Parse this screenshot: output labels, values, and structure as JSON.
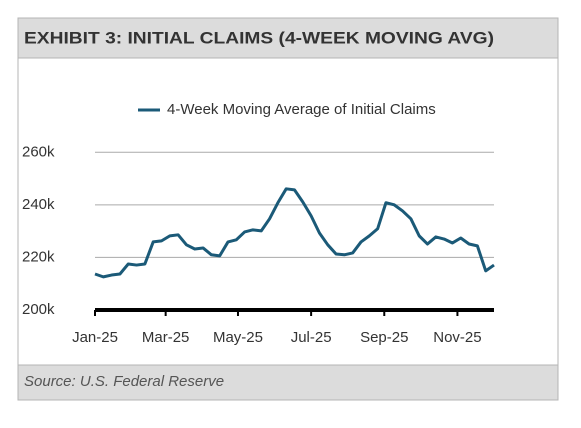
{
  "header": {
    "title": "EXHIBIT 3: INITIAL CLAIMS (4-WEEK MOVING AVG)"
  },
  "chart_data": {
    "type": "line",
    "legend": "top",
    "x": [
      0,
      1,
      2,
      3,
      4,
      5,
      6,
      7,
      8,
      9,
      10,
      11,
      12,
      13,
      14,
      15,
      16,
      17,
      18,
      19,
      20,
      21,
      22,
      23,
      24,
      25,
      26,
      27,
      28,
      29,
      30,
      31,
      32,
      33,
      34,
      35,
      36,
      37,
      38,
      39,
      40,
      41,
      42,
      43,
      44,
      45,
      46,
      47,
      48
    ],
    "series": [
      {
        "name": "4-Week Moving Average of Initial Claims",
        "color": "#1b5a78",
        "values": [
          213700,
          212600,
          213300,
          213700,
          217500,
          217100,
          217500,
          225900,
          226300,
          228200,
          228600,
          224800,
          223200,
          223600,
          221000,
          220600,
          225900,
          226700,
          229700,
          230500,
          230100,
          234700,
          240800,
          246100,
          245700,
          241100,
          235800,
          229300,
          224800,
          221300,
          221000,
          221700,
          225900,
          228200,
          230900,
          240800,
          240000,
          237700,
          234700,
          228200,
          225100,
          227800,
          227000,
          225500,
          227400,
          225100,
          224400,
          214900,
          217100
        ]
      }
    ],
    "xlim": [
      0,
      48
    ],
    "xticks": [
      {
        "value": 0,
        "label": "Jan-25"
      },
      {
        "value": 8.5,
        "label": "Mar-25"
      },
      {
        "value": 17.2,
        "label": "May-25"
      },
      {
        "value": 26,
        "label": "Jul-25"
      },
      {
        "value": 34.8,
        "label": "Sep-25"
      },
      {
        "value": 43.6,
        "label": "Nov-25"
      }
    ],
    "ylim": [
      200000,
      270000
    ],
    "yticks": [
      {
        "value": 200000,
        "label": "200k"
      },
      {
        "value": 220000,
        "label": "220k"
      },
      {
        "value": 240000,
        "label": "240k"
      },
      {
        "value": 260000,
        "label": "260k"
      }
    ],
    "grid": true
  },
  "footer": {
    "source": "Source: U.S. Federal Reserve"
  }
}
